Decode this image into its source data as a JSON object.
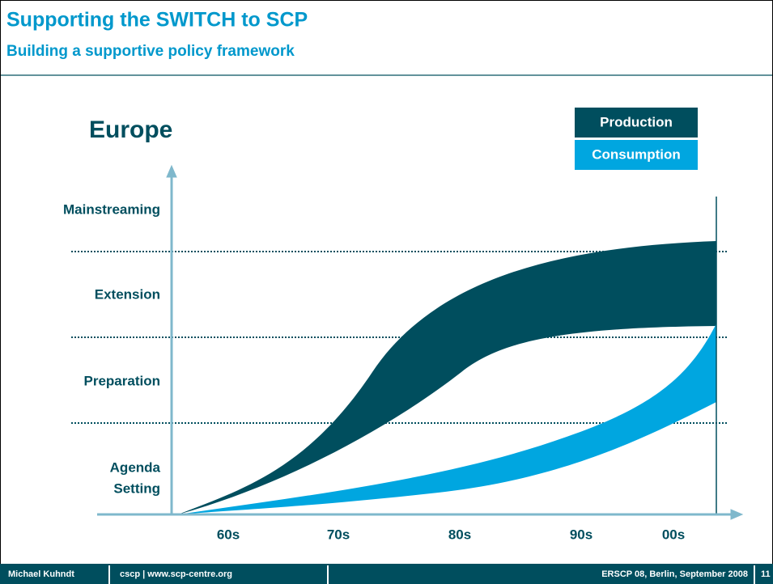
{
  "header": {
    "title": "Supporting the SWITCH to SCP",
    "subtitle": "Building a supportive policy framework"
  },
  "diagram": {
    "label": "Europe",
    "legend": [
      "Production",
      "Consumption"
    ],
    "levels": [
      [
        "Mainstreaming"
      ],
      [
        "Extension"
      ],
      [
        "Preparation"
      ],
      [
        "Agenda",
        "Setting"
      ]
    ],
    "periods": [
      "60s",
      "70s",
      "80s",
      "90s",
      "00s"
    ]
  },
  "footer": {
    "author": "Michael Kuhndt",
    "org": "cscp | www.scp-centre.org",
    "event": "ERSCP 08, Berlin, September 2008",
    "page": "11"
  }
}
